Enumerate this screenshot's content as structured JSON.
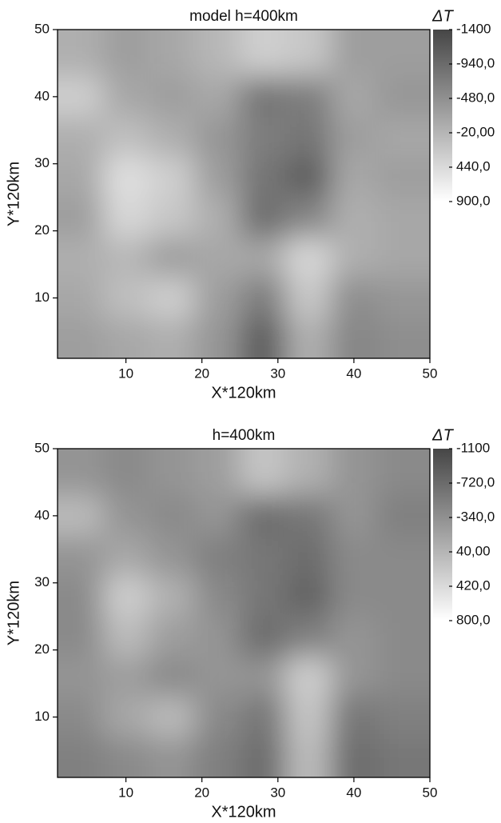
{
  "chart_data": [
    {
      "type": "heatmap",
      "title": "model h=400km",
      "xlabel": "X*120km",
      "ylabel": "Y*120km",
      "colorbar_label": "ΔT",
      "xlim": [
        1,
        50
      ],
      "ylim": [
        1,
        50
      ],
      "xticks": [
        10,
        20,
        30,
        40,
        50
      ],
      "yticks": [
        10,
        20,
        30,
        40,
        50
      ],
      "clim": [
        -1400,
        900
      ],
      "cticks": [
        {
          "value": -1400,
          "label": "-1400"
        },
        {
          "value": -940,
          "label": "-940,0"
        },
        {
          "value": -480,
          "label": "-480,0"
        },
        {
          "value": -20,
          "label": "-20,00"
        },
        {
          "value": 440,
          "label": "440,0"
        },
        {
          "value": 900,
          "label": "900,0"
        }
      ],
      "x": [
        4,
        10,
        16,
        22,
        28,
        34,
        40,
        46
      ],
      "y": [
        4,
        10,
        16,
        22,
        28,
        34,
        40,
        46
      ],
      "z": [
        [
          -300,
          -200,
          -100,
          -400,
          -1100,
          -100,
          -600,
          -500
        ],
        [
          -200,
          100,
          300,
          -300,
          -700,
          200,
          -500,
          -400
        ],
        [
          -100,
          0,
          -300,
          -200,
          -200,
          400,
          -100,
          -200
        ],
        [
          -300,
          400,
          200,
          -100,
          -900,
          -600,
          -100,
          -200
        ],
        [
          -200,
          500,
          300,
          -300,
          -800,
          -1100,
          -200,
          -300
        ],
        [
          -100,
          100,
          -100,
          -400,
          -700,
          -800,
          -300,
          -200
        ],
        [
          300,
          -200,
          -300,
          -200,
          -800,
          -700,
          -200,
          -400
        ],
        [
          -100,
          -300,
          -200,
          0,
          300,
          200,
          -300,
          -300
        ]
      ]
    },
    {
      "type": "heatmap",
      "title": "h=400km",
      "xlabel": "X*120km",
      "ylabel": "Y*120km",
      "colorbar_label": "ΔT",
      "xlim": [
        1,
        50
      ],
      "ylim": [
        1,
        50
      ],
      "xticks": [
        10,
        20,
        30,
        40,
        50
      ],
      "yticks": [
        10,
        20,
        30,
        40,
        50
      ],
      "clim": [
        -1100,
        800
      ],
      "cticks": [
        {
          "value": -1100,
          "label": "-1100"
        },
        {
          "value": -720,
          "label": "-720,0"
        },
        {
          "value": -340,
          "label": "-340,0"
        },
        {
          "value": 40,
          "label": "40,00"
        },
        {
          "value": 420,
          "label": "420,0"
        },
        {
          "value": 800,
          "label": "800,0"
        }
      ],
      "x": [
        4,
        10,
        16,
        22,
        28,
        34,
        40,
        46
      ],
      "y": [
        4,
        10,
        16,
        22,
        28,
        34,
        40,
        46
      ],
      "z": [
        [
          -500,
          -400,
          -300,
          -500,
          -700,
          100,
          -700,
          -600
        ],
        [
          -400,
          -100,
          100,
          -400,
          -600,
          200,
          -600,
          -500
        ],
        [
          -300,
          -200,
          -400,
          -300,
          -300,
          300,
          -300,
          -400
        ],
        [
          -400,
          100,
          -200,
          -300,
          -700,
          -500,
          -300,
          -400
        ],
        [
          -400,
          300,
          0,
          -400,
          -600,
          -800,
          -400,
          -400
        ],
        [
          -300,
          -100,
          -300,
          -500,
          -600,
          -700,
          -400,
          -400
        ],
        [
          100,
          -300,
          -400,
          -300,
          -700,
          -600,
          -300,
          -500
        ],
        [
          -300,
          -400,
          -300,
          -200,
          200,
          0,
          -300,
          -400
        ]
      ]
    }
  ]
}
